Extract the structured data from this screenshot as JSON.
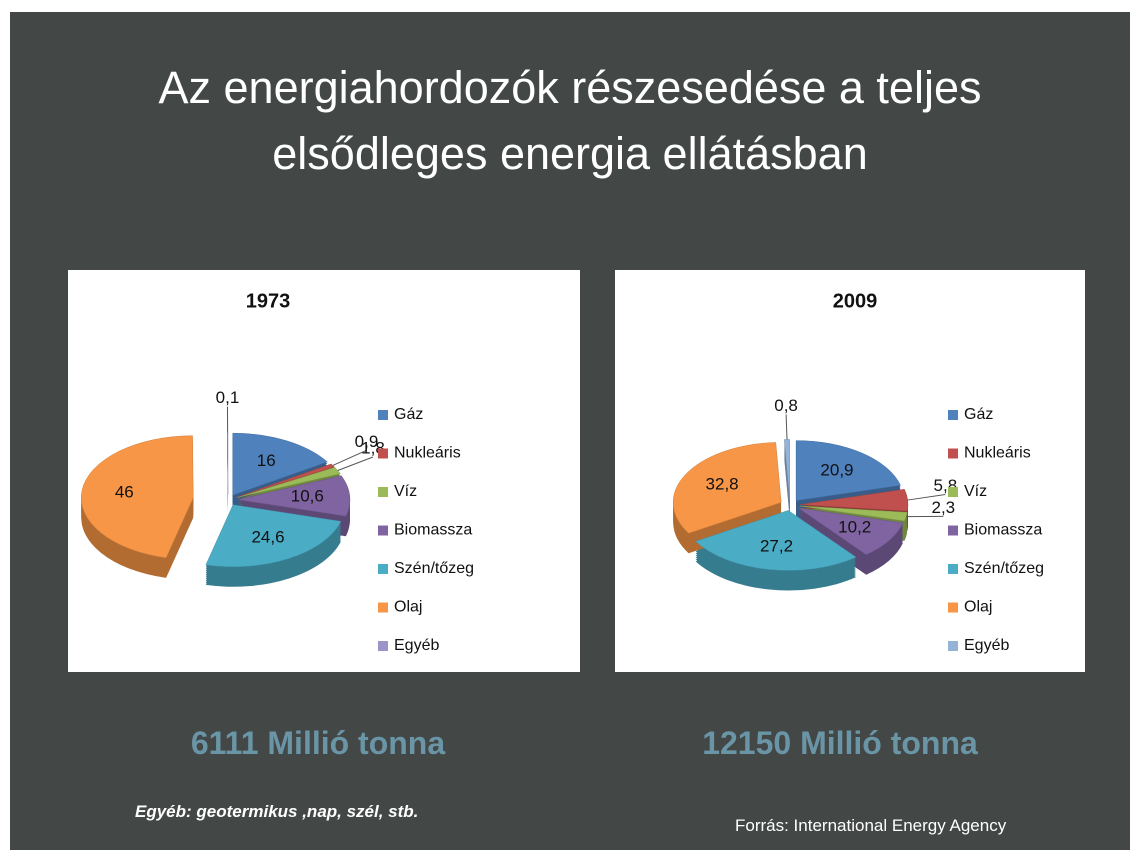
{
  "title": [
    "Az energiahordozók részesedése a teljes",
    "elsődleges energia ellátásban"
  ],
  "chart_data": [
    {
      "type": "pie",
      "title": "1973",
      "categories": [
        "Gáz",
        "Nukleáris",
        "Víz",
        "Biomassza",
        "Szén/tőzeg",
        "Olaj",
        "Egyéb"
      ],
      "values": [
        16,
        0.9,
        1.8,
        10.6,
        24.6,
        46,
        0.1
      ],
      "value_labels": [
        "16",
        "0,9",
        "1,8",
        "10,6",
        "24,6",
        "46",
        "0,1"
      ],
      "colors": [
        "#4f81bd",
        "#c0504d",
        "#9bbb59",
        "#8064a2",
        "#4bacc6",
        "#f79646",
        "#9e93c8"
      ]
    },
    {
      "type": "pie",
      "title": "2009",
      "categories": [
        "Gáz",
        "Nukleáris",
        "Víz",
        "Biomassza",
        "Szén/tőzeg",
        "Olaj",
        "Egyéb"
      ],
      "values": [
        20.9,
        5.8,
        2.3,
        10.2,
        27.2,
        32.8,
        0.8
      ],
      "value_labels": [
        "20,9",
        "5,8",
        "2,3",
        "10,2",
        "27,2",
        "32,8",
        "0,8"
      ],
      "colors": [
        "#4f81bd",
        "#c0504d",
        "#9bbb59",
        "#8064a2",
        "#4bacc6",
        "#f79646",
        "#95b3d7"
      ]
    }
  ],
  "captions": [
    "6111 Millió tonna",
    "12150 Millió tonna"
  ],
  "footnote": "Egyéb: geotermikus ,nap, szél, stb.",
  "source": "Forrás: International Energy Agency"
}
